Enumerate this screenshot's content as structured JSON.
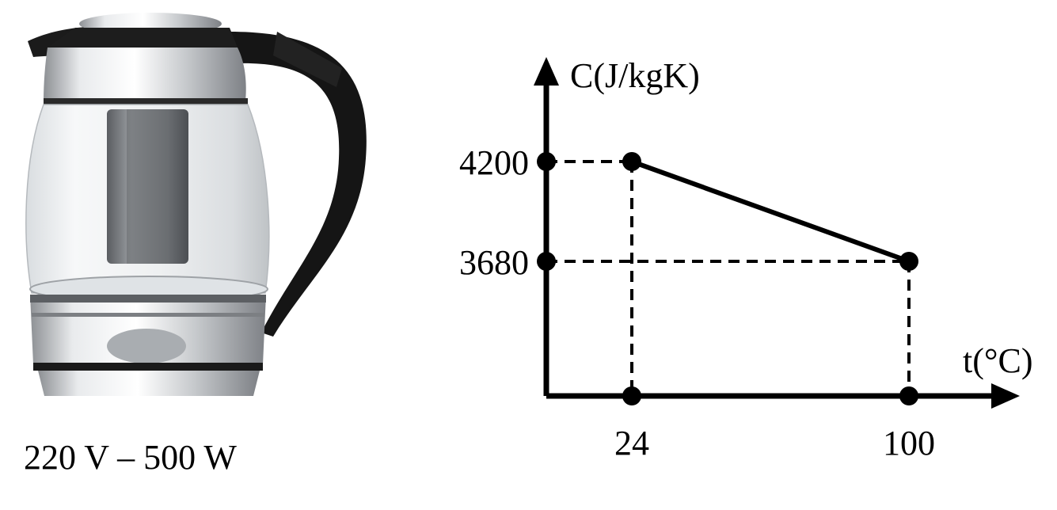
{
  "figure": {
    "kettle_label": "220 V – 500 W"
  },
  "chart_data": {
    "type": "line",
    "xlabel": "t(°C)",
    "ylabel": "C(J/kgK)",
    "x": [
      24,
      100
    ],
    "series": [
      {
        "values": [
          4200,
          3680
        ]
      }
    ],
    "x_ticks": [
      "24",
      "100"
    ],
    "y_ticks": [
      "4200",
      "3680"
    ],
    "grid": false,
    "guide_lines": "dashed"
  },
  "colors": {
    "ink": "#000000",
    "kettle_body": "#b9bdc1",
    "kettle_handle": "#141414"
  }
}
